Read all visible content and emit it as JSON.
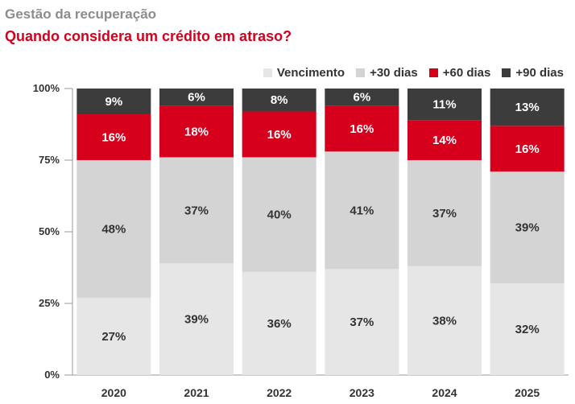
{
  "header": {
    "kicker": "Gestão da recuperação",
    "title": "Quando considera um crédito em atraso?"
  },
  "chart_data": {
    "type": "bar",
    "stacked": true,
    "categories": [
      "2020",
      "2021",
      "2022",
      "2023",
      "2024",
      "2025"
    ],
    "series": [
      {
        "name": "Vencimento",
        "color": "#e6e6e6",
        "text_color": "#333333",
        "values": [
          27,
          39,
          36,
          37,
          38,
          32
        ]
      },
      {
        "name": "+30 dias",
        "color": "#d4d4d4",
        "text_color": "#333333",
        "values": [
          48,
          37,
          40,
          41,
          37,
          39
        ]
      },
      {
        "name": "+60 dias",
        "color": "#d6001c",
        "text_color": "#ffffff",
        "values": [
          16,
          18,
          16,
          16,
          14,
          16
        ]
      },
      {
        "name": "+90 dias",
        "color": "#3c3c3c",
        "text_color": "#ffffff",
        "values": [
          9,
          6,
          8,
          6,
          11,
          13
        ]
      }
    ],
    "yticks": [
      "0%",
      "25%",
      "50%",
      "75%",
      "100%"
    ],
    "ylim": [
      0,
      100
    ],
    "value_suffix": "%",
    "legend_position": "top-right",
    "grid": false
  }
}
